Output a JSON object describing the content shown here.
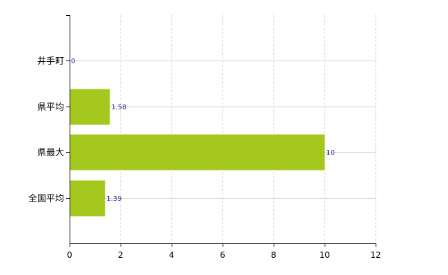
{
  "chart_data": {
    "type": "bar",
    "orientation": "horizontal",
    "categories": [
      "井手町",
      "県平均",
      "県最大",
      "全国平均"
    ],
    "values": [
      0,
      1.58,
      10,
      1.39
    ],
    "data_labels": [
      "0",
      "1.58",
      "10",
      "1.39"
    ],
    "xlim": [
      0,
      12
    ],
    "xticks": [
      0,
      2,
      4,
      6,
      8,
      10,
      12
    ],
    "xtick_labels": [
      "0",
      "2",
      "4",
      "6",
      "8",
      "10",
      "12"
    ],
    "grid": true,
    "legend": "none",
    "bar_color": "#a4c81e",
    "title": "",
    "xlabel": "",
    "ylabel": ""
  }
}
